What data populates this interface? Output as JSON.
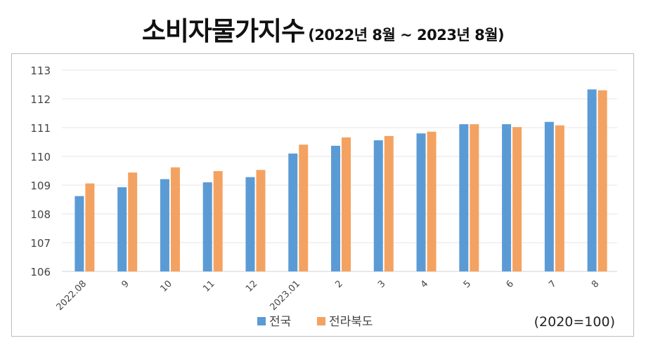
{
  "title": {
    "main": "소비자물가지수",
    "sub": "(2022년 8월 ~ 2023년 8월)"
  },
  "note": "(2020=100)",
  "colors": {
    "series_1": "#5b9bd5",
    "series_2": "#f4a261"
  },
  "chart_data": {
    "type": "bar",
    "categories": [
      "2022.08",
      "9",
      "10",
      "11",
      "12",
      "2023.01",
      "2",
      "3",
      "4",
      "5",
      "6",
      "7",
      "8"
    ],
    "series": [
      {
        "name": "전국",
        "values": [
          108.62,
          108.93,
          109.21,
          109.1,
          109.28,
          110.1,
          110.37,
          110.56,
          110.8,
          111.12,
          111.12,
          111.2,
          112.33
        ]
      },
      {
        "name": "전라북도",
        "values": [
          109.06,
          109.44,
          109.62,
          109.49,
          109.53,
          110.41,
          110.66,
          110.71,
          110.86,
          111.12,
          111.02,
          111.08,
          112.3
        ]
      }
    ],
    "ylim": [
      106,
      113
    ],
    "yticks": [
      106,
      107,
      108,
      109,
      110,
      111,
      112,
      113
    ],
    "grid": true,
    "legend": "bottom"
  }
}
